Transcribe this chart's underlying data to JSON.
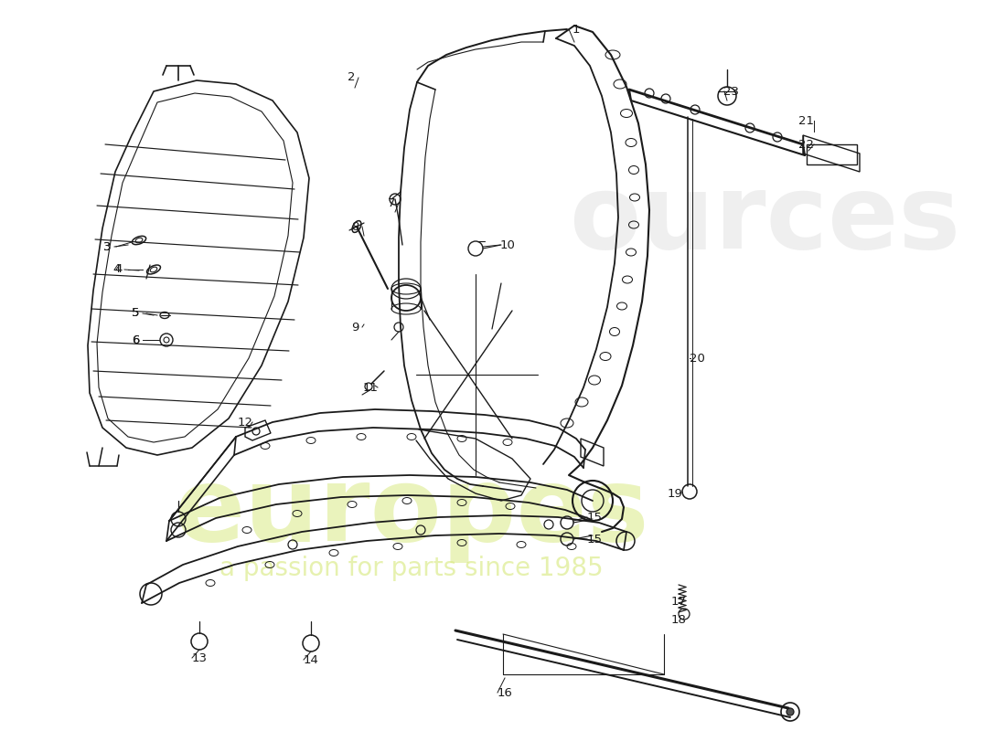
{
  "background_color": "#ffffff",
  "line_color": "#1a1a1a",
  "watermark1": "europes",
  "watermark2": "a passion for parts since 1985",
  "wm_color": "#d6e87a",
  "fig_width": 11.0,
  "fig_height": 8.0
}
